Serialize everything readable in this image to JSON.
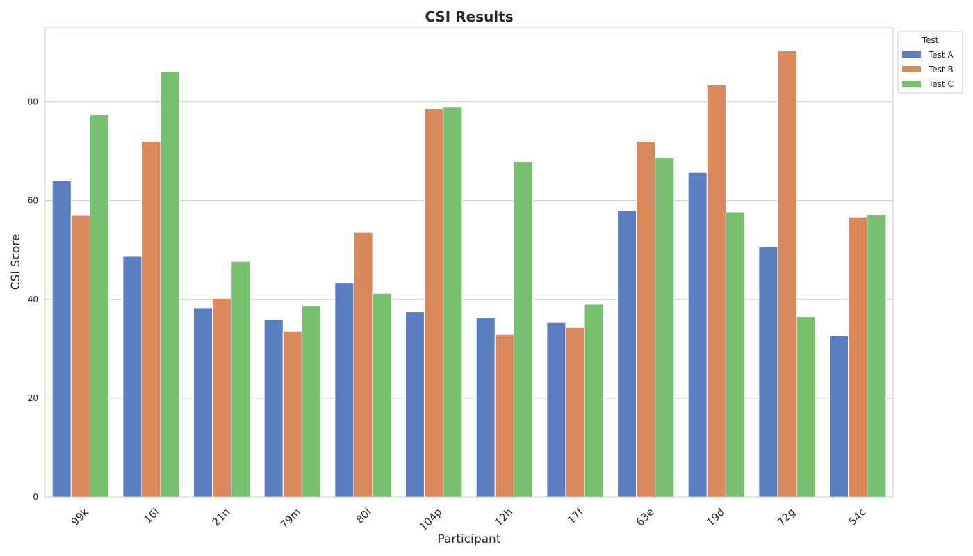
{
  "chart_data": {
    "type": "bar",
    "title": "CSI Results",
    "xlabel": "Participant",
    "ylabel": "CSI Score",
    "ylim": [
      0,
      95
    ],
    "yticks": [
      0,
      20,
      40,
      60,
      80
    ],
    "grid": true,
    "legend": {
      "title": "Test",
      "placement": "upper-right-outside"
    },
    "categories": [
      "99k",
      "16i",
      "21n",
      "79m",
      "80l",
      "104p",
      "12h",
      "17f",
      "63e",
      "19d",
      "72g",
      "54c"
    ],
    "series": [
      {
        "name": "Test A",
        "color": "#5a7ec0",
        "values": [
          64.0,
          48.7,
          38.3,
          35.9,
          43.4,
          37.5,
          36.3,
          35.3,
          58.0,
          65.7,
          50.6,
          32.6
        ]
      },
      {
        "name": "Test B",
        "color": "#d9895b",
        "values": [
          57.0,
          72.0,
          40.2,
          33.6,
          53.6,
          78.6,
          32.9,
          34.3,
          72.0,
          83.4,
          90.3,
          56.7
        ]
      },
      {
        "name": "Test C",
        "color": "#76c06f",
        "values": [
          77.4,
          86.1,
          47.7,
          38.7,
          41.2,
          79.0,
          67.9,
          39.0,
          68.6,
          57.7,
          36.5,
          57.2
        ]
      }
    ]
  }
}
